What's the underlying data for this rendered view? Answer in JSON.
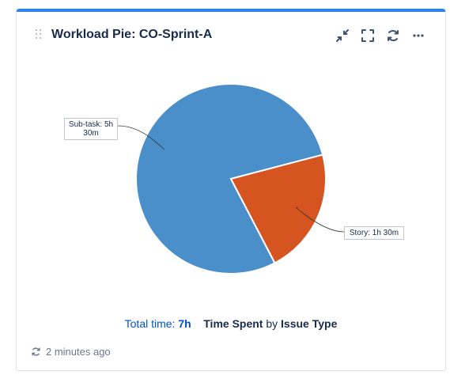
{
  "gadget": {
    "title": "Workload Pie: CO-Sprint-A",
    "accent_color": "#2684ff",
    "actions": [
      {
        "name": "minimize-icon"
      },
      {
        "name": "fullscreen-icon"
      },
      {
        "name": "refresh-icon"
      },
      {
        "name": "more-icon"
      }
    ]
  },
  "chart_data": {
    "type": "pie",
    "slices": [
      {
        "label": "Sub-task: 5h 30m",
        "value": 5.5,
        "color": "#4a8fca"
      },
      {
        "label": "Story: 1h 30m",
        "value": 1.5,
        "color": "#d6541f"
      }
    ]
  },
  "summary": {
    "total_label": "Total time:",
    "total_value": "7h",
    "statistic": "Time Spent",
    "by": "by",
    "field": "Issue Type"
  },
  "footer": {
    "refresh_icon": "refresh-icon",
    "updated": "2 minutes ago"
  }
}
